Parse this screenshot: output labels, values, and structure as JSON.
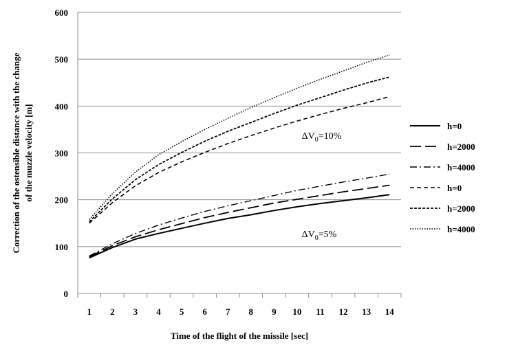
{
  "chart_data": {
    "type": "line",
    "title": "",
    "xlabel": "Time of the flight of the missile [sec]",
    "ylabel": [
      "Correction of the ostensible distance with the change",
      "of the muzzle velocity [m]"
    ],
    "x": [
      1,
      2,
      3,
      4,
      5,
      6,
      7,
      8,
      9,
      10,
      11,
      12,
      13,
      14
    ],
    "xlim": [
      0.5,
      14.5
    ],
    "ylim": [
      0,
      600
    ],
    "yticks": [
      0,
      100,
      200,
      300,
      400,
      500,
      600
    ],
    "xticks": [
      "1",
      "2",
      "3",
      "4",
      "5",
      "6",
      "7",
      "8",
      "9",
      "10",
      "11",
      "12",
      "13",
      "14"
    ],
    "grid": "horizontal",
    "legend_position": "right",
    "series": [
      {
        "name": "h=0",
        "style": "solid",
        "group": "5%",
        "values": [
          76,
          98,
          116,
          128,
          139,
          150,
          160,
          168,
          177,
          185,
          192,
          198,
          204,
          211
        ]
      },
      {
        "name": "h=2000",
        "style": "longdash",
        "group": "5%",
        "values": [
          78,
          102,
          121,
          136,
          149,
          162,
          173,
          183,
          193,
          201,
          209,
          217,
          224,
          231
        ]
      },
      {
        "name": "h=4000",
        "style": "dashdot",
        "group": "5%",
        "values": [
          80,
          106,
          128,
          146,
          161,
          175,
          187,
          198,
          209,
          220,
          229,
          238,
          246,
          255
        ]
      },
      {
        "name": "h=0",
        "style": "shortdash",
        "group": "10%",
        "values": [
          150,
          194,
          230,
          258,
          281,
          301,
          320,
          337,
          353,
          368,
          382,
          395,
          407,
          420
        ]
      },
      {
        "name": "h=2000",
        "style": "mediumdash",
        "group": "10%",
        "values": [
          153,
          202,
          243,
          275,
          301,
          325,
          346,
          365,
          384,
          402,
          418,
          434,
          449,
          462
        ]
      },
      {
        "name": "h=4000",
        "style": "dotted",
        "group": "10%",
        "values": [
          158,
          213,
          259,
          296,
          324,
          350,
          374,
          397,
          418,
          438,
          457,
          475,
          493,
          509
        ]
      }
    ],
    "annotations": [
      {
        "text": "ΔV",
        "sub": "0",
        "suffix": "=10%",
        "x": 10.2,
        "y": 330
      },
      {
        "text": "ΔV",
        "sub": "0",
        "suffix": "=5%",
        "x": 10.2,
        "y": 120
      }
    ]
  }
}
